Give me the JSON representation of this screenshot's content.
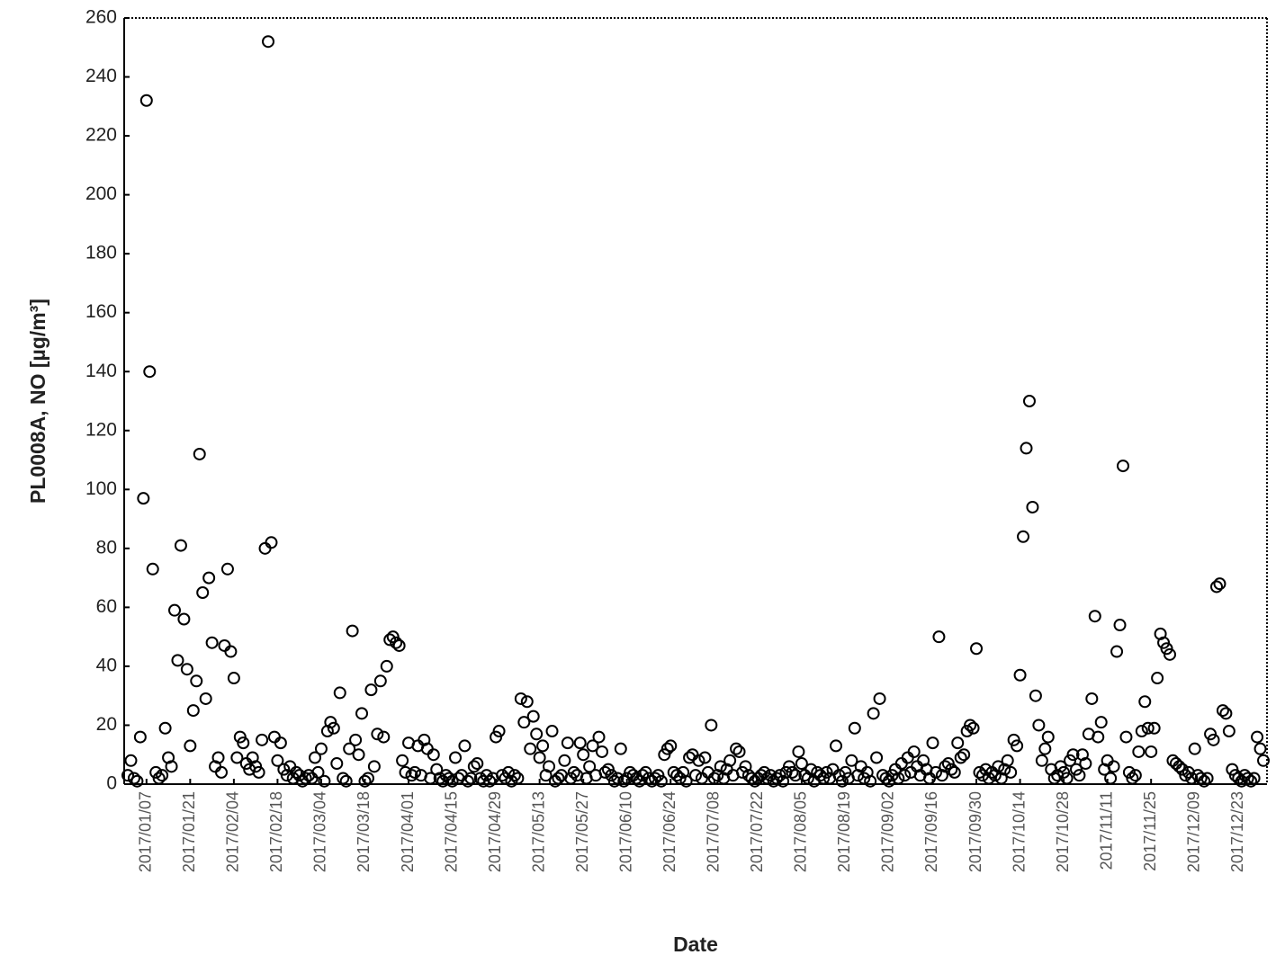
{
  "chart_data": {
    "type": "scatter",
    "x_label": "Date",
    "y_label": "PL0008A, NO [µg/m³]",
    "color": "#000000",
    "xlim": [
      "2017/01/01",
      "2017/12/31"
    ],
    "xticks": [
      "2017/01/07",
      "2017/01/21",
      "2017/02/04",
      "2017/02/18",
      "2017/03/04",
      "2017/03/18",
      "2017/04/01",
      "2017/04/15",
      "2017/04/29",
      "2017/05/13",
      "2017/05/27",
      "2017/06/10",
      "2017/06/24",
      "2017/07/08",
      "2017/07/22",
      "2017/08/05",
      "2017/08/19",
      "2017/09/02",
      "2017/09/16",
      "2017/09/30",
      "2017/10/14",
      "2017/10/28",
      "2017/11/11",
      "2017/11/25",
      "2017/12/09",
      "2017/12/23"
    ],
    "ylim": [
      0,
      260
    ],
    "yticks": [
      0,
      20,
      40,
      60,
      80,
      100,
      120,
      140,
      160,
      180,
      200,
      220,
      240,
      260
    ],
    "x": [
      "2017/01/01",
      "2017/01/02",
      "2017/01/03",
      "2017/01/04",
      "2017/01/05",
      "2017/01/06",
      "2017/01/07",
      "2017/01/08",
      "2017/01/09",
      "2017/01/10",
      "2017/01/11",
      "2017/01/12",
      "2017/01/13",
      "2017/01/14",
      "2017/01/15",
      "2017/01/16",
      "2017/01/17",
      "2017/01/18",
      "2017/01/19",
      "2017/01/20",
      "2017/01/21",
      "2017/01/22",
      "2017/01/23",
      "2017/01/24",
      "2017/01/25",
      "2017/01/26",
      "2017/01/27",
      "2017/01/28",
      "2017/01/29",
      "2017/01/30",
      "2017/01/31",
      "2017/02/01",
      "2017/02/02",
      "2017/02/03",
      "2017/02/04",
      "2017/02/05",
      "2017/02/06",
      "2017/02/07",
      "2017/02/08",
      "2017/02/09",
      "2017/02/10",
      "2017/02/11",
      "2017/02/12",
      "2017/02/13",
      "2017/02/14",
      "2017/02/15",
      "2017/02/16",
      "2017/02/17",
      "2017/02/18",
      "2017/02/19",
      "2017/02/20",
      "2017/02/21",
      "2017/02/22",
      "2017/02/23",
      "2017/02/24",
      "2017/02/25",
      "2017/02/26",
      "2017/02/27",
      "2017/02/28",
      "2017/03/01",
      "2017/03/02",
      "2017/03/03",
      "2017/03/04",
      "2017/03/05",
      "2017/03/06",
      "2017/03/07",
      "2017/03/08",
      "2017/03/09",
      "2017/03/10",
      "2017/03/11",
      "2017/03/12",
      "2017/03/13",
      "2017/03/14",
      "2017/03/15",
      "2017/03/16",
      "2017/03/17",
      "2017/03/18",
      "2017/03/19",
      "2017/03/20",
      "2017/03/21",
      "2017/03/22",
      "2017/03/23",
      "2017/03/24",
      "2017/03/25",
      "2017/03/26",
      "2017/03/27",
      "2017/03/28",
      "2017/03/29",
      "2017/03/30",
      "2017/03/31",
      "2017/04/01",
      "2017/04/02",
      "2017/04/03",
      "2017/04/04",
      "2017/04/05",
      "2017/04/06",
      "2017/04/07",
      "2017/04/08",
      "2017/04/09",
      "2017/04/10",
      "2017/04/11",
      "2017/04/12",
      "2017/04/13",
      "2017/04/14",
      "2017/04/15",
      "2017/04/16",
      "2017/04/17",
      "2017/04/18",
      "2017/04/19",
      "2017/04/20",
      "2017/04/21",
      "2017/04/22",
      "2017/04/23",
      "2017/04/24",
      "2017/04/25",
      "2017/04/26",
      "2017/04/27",
      "2017/04/28",
      "2017/04/29",
      "2017/04/30",
      "2017/05/01",
      "2017/05/02",
      "2017/05/03",
      "2017/05/04",
      "2017/05/05",
      "2017/05/06",
      "2017/05/07",
      "2017/05/08",
      "2017/05/09",
      "2017/05/10",
      "2017/05/11",
      "2017/05/12",
      "2017/05/13",
      "2017/05/14",
      "2017/05/15",
      "2017/05/16",
      "2017/05/17",
      "2017/05/18",
      "2017/05/19",
      "2017/05/20",
      "2017/05/21",
      "2017/05/22",
      "2017/05/23",
      "2017/05/24",
      "2017/05/25",
      "2017/05/26",
      "2017/05/27",
      "2017/05/28",
      "2017/05/29",
      "2017/05/30",
      "2017/05/31",
      "2017/06/01",
      "2017/06/02",
      "2017/06/03",
      "2017/06/04",
      "2017/06/05",
      "2017/06/06",
      "2017/06/07",
      "2017/06/08",
      "2017/06/09",
      "2017/06/10",
      "2017/06/11",
      "2017/06/12",
      "2017/06/13",
      "2017/06/14",
      "2017/06/15",
      "2017/06/16",
      "2017/06/17",
      "2017/06/18",
      "2017/06/19",
      "2017/06/20",
      "2017/06/21",
      "2017/06/22",
      "2017/06/23",
      "2017/06/24",
      "2017/06/25",
      "2017/06/26",
      "2017/06/27",
      "2017/06/28",
      "2017/06/29",
      "2017/06/30",
      "2017/07/01",
      "2017/07/02",
      "2017/07/03",
      "2017/07/04",
      "2017/07/05",
      "2017/07/06",
      "2017/07/07",
      "2017/07/08",
      "2017/07/09",
      "2017/07/10",
      "2017/07/11",
      "2017/07/12",
      "2017/07/13",
      "2017/07/14",
      "2017/07/15",
      "2017/07/16",
      "2017/07/17",
      "2017/07/18",
      "2017/07/19",
      "2017/07/20",
      "2017/07/21",
      "2017/07/22",
      "2017/07/23",
      "2017/07/24",
      "2017/07/25",
      "2017/07/26",
      "2017/07/27",
      "2017/07/28",
      "2017/07/29",
      "2017/07/30",
      "2017/07/31",
      "2017/08/01",
      "2017/08/02",
      "2017/08/03",
      "2017/08/04",
      "2017/08/05",
      "2017/08/06",
      "2017/08/07",
      "2017/08/08",
      "2017/08/09",
      "2017/08/10",
      "2017/08/11",
      "2017/08/12",
      "2017/08/13",
      "2017/08/14",
      "2017/08/15",
      "2017/08/16",
      "2017/08/17",
      "2017/08/18",
      "2017/08/19",
      "2017/08/20",
      "2017/08/21",
      "2017/08/22",
      "2017/08/23",
      "2017/08/24",
      "2017/08/25",
      "2017/08/26",
      "2017/08/27",
      "2017/08/28",
      "2017/08/29",
      "2017/08/30",
      "2017/08/31",
      "2017/09/01",
      "2017/09/02",
      "2017/09/03",
      "2017/09/04",
      "2017/09/05",
      "2017/09/06",
      "2017/09/07",
      "2017/09/08",
      "2017/09/09",
      "2017/09/10",
      "2017/09/11",
      "2017/09/12",
      "2017/09/13",
      "2017/09/14",
      "2017/09/15",
      "2017/09/16",
      "2017/09/17",
      "2017/09/18",
      "2017/09/19",
      "2017/09/20",
      "2017/09/21",
      "2017/09/22",
      "2017/09/23",
      "2017/09/24",
      "2017/09/25",
      "2017/09/26",
      "2017/09/27",
      "2017/09/28",
      "2017/09/29",
      "2017/09/30",
      "2017/10/01",
      "2017/10/02",
      "2017/10/03",
      "2017/10/04",
      "2017/10/05",
      "2017/10/06",
      "2017/10/07",
      "2017/10/08",
      "2017/10/09",
      "2017/10/10",
      "2017/10/11",
      "2017/10/12",
      "2017/10/13",
      "2017/10/14",
      "2017/10/15",
      "2017/10/16",
      "2017/10/17",
      "2017/10/18",
      "2017/10/19",
      "2017/10/20",
      "2017/10/21",
      "2017/10/22",
      "2017/10/23",
      "2017/10/24",
      "2017/10/25",
      "2017/10/26",
      "2017/10/27",
      "2017/10/28",
      "2017/10/29",
      "2017/10/30",
      "2017/10/31",
      "2017/11/01",
      "2017/11/02",
      "2017/11/03",
      "2017/11/04",
      "2017/11/05",
      "2017/11/06",
      "2017/11/07",
      "2017/11/08",
      "2017/11/09",
      "2017/11/10",
      "2017/11/11",
      "2017/11/12",
      "2017/11/13",
      "2017/11/14",
      "2017/11/15",
      "2017/11/16",
      "2017/11/17",
      "2017/11/18",
      "2017/11/19",
      "2017/11/20",
      "2017/11/21",
      "2017/11/22",
      "2017/11/23",
      "2017/11/24",
      "2017/11/25",
      "2017/11/26",
      "2017/11/27",
      "2017/11/28",
      "2017/11/29",
      "2017/11/30",
      "2017/12/01",
      "2017/12/02",
      "2017/12/03",
      "2017/12/04",
      "2017/12/05",
      "2017/12/06",
      "2017/12/07",
      "2017/12/08",
      "2017/12/09",
      "2017/12/10",
      "2017/12/11",
      "2017/12/12",
      "2017/12/13",
      "2017/12/14",
      "2017/12/15",
      "2017/12/16",
      "2017/12/17",
      "2017/12/18",
      "2017/12/19",
      "2017/12/20",
      "2017/12/21",
      "2017/12/22",
      "2017/12/23",
      "2017/12/24",
      "2017/12/25",
      "2017/12/26",
      "2017/12/27",
      "2017/12/28",
      "2017/12/29",
      "2017/12/30",
      "2017/12/31"
    ],
    "values": [
      3,
      8,
      2,
      1,
      16,
      97,
      232,
      140,
      73,
      4,
      2,
      3,
      19,
      9,
      6,
      59,
      42,
      81,
      56,
      39,
      13,
      25,
      35,
      112,
      65,
      29,
      70,
      48,
      6,
      9,
      4,
      47,
      73,
      45,
      36,
      9,
      16,
      14,
      7,
      5,
      9,
      6,
      4,
      15,
      80,
      252,
      82,
      16,
      8,
      14,
      5,
      3,
      6,
      2,
      4,
      3,
      1,
      2,
      3,
      2,
      9,
      4,
      12,
      1,
      18,
      21,
      19,
      7,
      31,
      2,
      1,
      12,
      52,
      15,
      10,
      24,
      1,
      2,
      32,
      6,
      17,
      35,
      16,
      40,
      49,
      50,
      48,
      47,
      8,
      4,
      14,
      3,
      4,
      13,
      3,
      15,
      12,
      2,
      10,
      5,
      2,
      1,
      3,
      2,
      1,
      9,
      2,
      3,
      13,
      1,
      2,
      6,
      7,
      2,
      1,
      3,
      1,
      2,
      16,
      18,
      3,
      2,
      4,
      1,
      3,
      2,
      29,
      21,
      28,
      12,
      23,
      17,
      9,
      13,
      3,
      6,
      18,
      1,
      2,
      3,
      8,
      14,
      2,
      4,
      3,
      14,
      10,
      2,
      6,
      13,
      3,
      16,
      11,
      4,
      5,
      3,
      1,
      2,
      12,
      1,
      2,
      4,
      3,
      2,
      1,
      3,
      4,
      2,
      1,
      2,
      3,
      1,
      10,
      12,
      13,
      4,
      3,
      2,
      4,
      1,
      9,
      10,
      3,
      8,
      2,
      9,
      4,
      20,
      2,
      3,
      6,
      2,
      5,
      8,
      3,
      12,
      11,
      4,
      6,
      3,
      2,
      1,
      2,
      3,
      4,
      2,
      3,
      1,
      2,
      3,
      1,
      4,
      6,
      4,
      3,
      11,
      7,
      3,
      2,
      5,
      1,
      4,
      3,
      2,
      4,
      2,
      5,
      13,
      3,
      1,
      4,
      2,
      8,
      19,
      3,
      6,
      2,
      4,
      1,
      24,
      9,
      29,
      3,
      2,
      1,
      3,
      5,
      2,
      7,
      3,
      9,
      4,
      11,
      6,
      3,
      8,
      5,
      2,
      14,
      4,
      50,
      3,
      6,
      7,
      5,
      4,
      14,
      9,
      10,
      18,
      20,
      19,
      46,
      4,
      3,
      5,
      2,
      4,
      3,
      6,
      2,
      5,
      8,
      4,
      15,
      13,
      37,
      84,
      114,
      130,
      94,
      30,
      20,
      8,
      12,
      16,
      5,
      2,
      3,
      6,
      4,
      2,
      8,
      10,
      5,
      3,
      10,
      7,
      17,
      29,
      57,
      16,
      21,
      5,
      8,
      2,
      6,
      45,
      54,
      108,
      16,
      4,
      2,
      3,
      11,
      18,
      28,
      19,
      11,
      19,
      36,
      51,
      48,
      46,
      44,
      8,
      7,
      6,
      5,
      3,
      4,
      2,
      12,
      3,
      2,
      1,
      2,
      17,
      15,
      67,
      68,
      25,
      24,
      18,
      5,
      3,
      2,
      1,
      3,
      2,
      1,
      2,
      16,
      12,
      8
    ]
  }
}
